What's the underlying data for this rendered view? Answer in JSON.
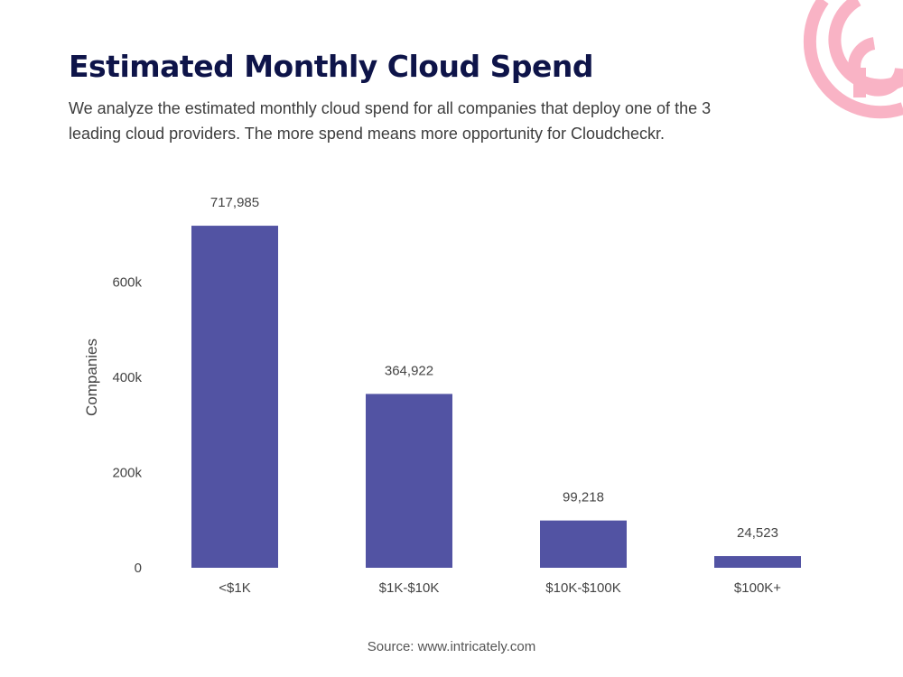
{
  "page": {
    "title": "Estimated Monthly Cloud Spend",
    "subtitle": "We analyze the estimated monthly cloud spend for all companies that deploy one of the 3 leading cloud providers. The more spend means more opportunity for Cloudcheckr.",
    "source": "Source: www.intricately.com"
  },
  "logo": {
    "icon": "intricately-logo-icon",
    "color": "#f9b3c5"
  },
  "chart_data": {
    "type": "bar",
    "categories": [
      "<$1K",
      "$1K-$10K",
      "$10K-$100K",
      "$100K+"
    ],
    "values": [
      717985,
      364922,
      99218,
      24523
    ],
    "data_labels": [
      "717,985",
      "364,922",
      "99,218",
      "24,523"
    ],
    "ylabel": "Companies",
    "xlabel": "",
    "ylim": [
      0,
      720000
    ],
    "yticks": [
      0,
      200000,
      400000,
      600000
    ],
    "ytick_labels": [
      "0",
      "200k",
      "400k",
      "600k"
    ],
    "bar_color": "#5253a3",
    "grid": false
  }
}
